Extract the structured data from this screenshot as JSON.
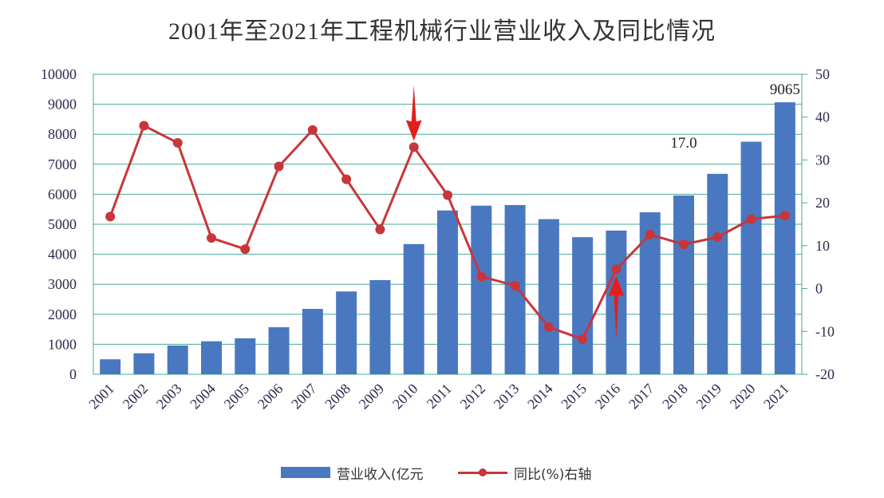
{
  "chart_data": {
    "type": "bar+line",
    "title": "2001年至2021年工程机械行业营业收入及同比情况",
    "categories": [
      "2001",
      "2002",
      "2003",
      "2004",
      "2005",
      "2006",
      "2007",
      "2008",
      "2009",
      "2010",
      "2011",
      "2012",
      "2013",
      "2014",
      "2015",
      "2016",
      "2017",
      "2018",
      "2019",
      "2020",
      "2021"
    ],
    "series": [
      {
        "name": "营业收入(亿元",
        "type": "bar",
        "axis": "left",
        "color": "#4a78c0",
        "values": [
          500,
          700,
          960,
          1100,
          1200,
          1570,
          2180,
          2760,
          3140,
          4340,
          5460,
          5620,
          5640,
          5170,
          4570,
          4790,
          5400,
          5960,
          6680,
          7750,
          9065
        ]
      },
      {
        "name": "同比(%)右轴",
        "type": "line",
        "axis": "right",
        "color": "#c8353a",
        "values": [
          16.8,
          38.0,
          34.0,
          11.8,
          9.2,
          28.5,
          37.0,
          25.5,
          13.8,
          33.0,
          21.8,
          2.8,
          0.7,
          -9.0,
          -11.8,
          4.5,
          12.6,
          10.3,
          12.0,
          16.2,
          17.0
        ]
      }
    ],
    "y_left": {
      "min": 0,
      "max": 10000,
      "ticks": [
        0,
        1000,
        2000,
        3000,
        4000,
        5000,
        6000,
        7000,
        8000,
        9000,
        10000
      ]
    },
    "y_right": {
      "min": -20,
      "max": 50,
      "ticks": [
        -20,
        -10,
        0,
        10,
        20,
        30,
        40,
        50
      ]
    },
    "annotations": [
      {
        "text": "9065",
        "category": "2021",
        "series": "bar"
      },
      {
        "text": "17.0",
        "category": "2018",
        "series": "label"
      }
    ],
    "arrows": [
      {
        "category": "2010",
        "direction": "down"
      },
      {
        "category": "2016",
        "direction": "up"
      }
    ],
    "grid": true,
    "legend_position": "bottom"
  }
}
